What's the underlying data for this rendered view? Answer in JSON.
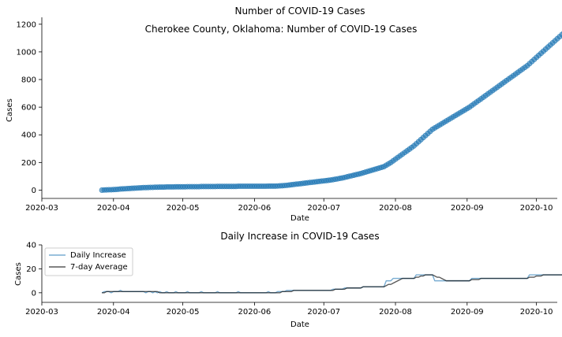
{
  "chart_data": [
    {
      "type": "scatter",
      "title": "Number of COVID-19 Cases",
      "annotation": "Cherokee County, Oklahoma: Number of COVID-19 Cases",
      "xlabel": "Date",
      "ylabel": "Cases",
      "x_type": "date",
      "xlim": [
        "2020-03-01",
        "2020-10-10"
      ],
      "ylim": [
        -60,
        1250
      ],
      "x_ticks": [
        "2020-03-01",
        "2020-04-01",
        "2020-05-01",
        "2020-06-01",
        "2020-07-01",
        "2020-08-01",
        "2020-09-01",
        "2020-10-01"
      ],
      "x_tick_labels": [
        "2020-03",
        "2020-04",
        "2020-05",
        "2020-06",
        "2020-07",
        "2020-08",
        "2020-09",
        "2020-10"
      ],
      "y_ticks": [
        0,
        200,
        400,
        600,
        800,
        1000,
        1200
      ],
      "y_tick_labels": [
        "0",
        "200",
        "400",
        "600",
        "800",
        "1000",
        "1200"
      ],
      "grid": false,
      "marker_color": "#1f77b4",
      "start_date": "2020-03-27",
      "values": [
        0,
        1,
        2,
        3,
        3,
        4,
        5,
        6,
        8,
        9,
        10,
        11,
        12,
        13,
        14,
        15,
        16,
        17,
        18,
        18,
        19,
        20,
        20,
        21,
        21,
        22,
        22,
        22,
        23,
        23,
        23,
        23,
        24,
        24,
        24,
        24,
        24,
        25,
        25,
        25,
        25,
        25,
        25,
        26,
        26,
        26,
        26,
        26,
        26,
        26,
        27,
        27,
        27,
        27,
        27,
        27,
        27,
        27,
        27,
        28,
        28,
        28,
        28,
        28,
        28,
        28,
        28,
        28,
        28,
        28,
        28,
        28,
        29,
        29,
        29,
        29,
        30,
        31,
        32,
        33,
        35,
        37,
        39,
        41,
        43,
        45,
        47,
        49,
        51,
        53,
        55,
        57,
        59,
        61,
        63,
        65,
        67,
        69,
        71,
        73,
        76,
        79,
        82,
        85,
        88,
        92,
        96,
        100,
        104,
        108,
        112,
        116,
        120,
        125,
        130,
        135,
        140,
        145,
        150,
        155,
        160,
        165,
        170,
        180,
        190,
        200,
        212,
        224,
        236,
        248,
        260,
        272,
        284,
        296,
        308,
        320,
        335,
        350,
        365,
        380,
        395,
        410,
        425,
        440,
        450,
        460,
        470,
        480,
        490,
        500,
        510,
        520,
        530,
        540,
        550,
        560,
        570,
        580,
        590,
        600,
        612,
        624,
        636,
        648,
        660,
        672,
        684,
        696,
        708,
        720,
        732,
        744,
        756,
        768,
        780,
        792,
        804,
        816,
        828,
        840,
        852,
        864,
        876,
        888,
        900,
        915,
        930,
        945,
        960,
        975,
        990,
        1005,
        1020,
        1035,
        1050,
        1065,
        1080,
        1095,
        1110,
        1125,
        1140,
        1160,
        1170,
        1175
      ]
    },
    {
      "type": "line",
      "title": "Daily Increase in COVID-19 Cases",
      "xlabel": "Date",
      "ylabel": "Cases",
      "x_type": "date",
      "xlim": [
        "2020-03-01",
        "2020-10-10"
      ],
      "ylim": [
        -8,
        40
      ],
      "x_ticks": [
        "2020-03-01",
        "2020-04-01",
        "2020-05-01",
        "2020-06-01",
        "2020-07-01",
        "2020-08-01",
        "2020-09-01",
        "2020-10-01"
      ],
      "x_tick_labels": [
        "2020-03",
        "2020-04",
        "2020-05",
        "2020-06",
        "2020-07",
        "2020-08",
        "2020-09",
        "2020-10"
      ],
      "y_ticks": [
        0,
        20,
        40
      ],
      "y_tick_labels": [
        "0",
        "20",
        "40"
      ],
      "grid": false,
      "legend_position": "top-left",
      "start_date": "2020-03-27",
      "series": [
        {
          "name": "Daily Increase",
          "color": "#1f77b4",
          "opacity": 0.6,
          "values": [
            0,
            1,
            1,
            1,
            0,
            1,
            1,
            1,
            2,
            1,
            1,
            1,
            1,
            1,
            1,
            1,
            1,
            1,
            1,
            0,
            1,
            1,
            0,
            1,
            0,
            1,
            0,
            0,
            1,
            0,
            0,
            0,
            1,
            0,
            0,
            0,
            0,
            1,
            0,
            0,
            0,
            0,
            0,
            1,
            0,
            0,
            0,
            0,
            0,
            0,
            1,
            0,
            0,
            0,
            0,
            0,
            0,
            0,
            0,
            1,
            0,
            0,
            0,
            0,
            0,
            0,
            0,
            0,
            0,
            0,
            0,
            0,
            1,
            0,
            0,
            0,
            1,
            1,
            1,
            1,
            2,
            2,
            2,
            2,
            2,
            2,
            2,
            2,
            2,
            2,
            2,
            2,
            2,
            2,
            2,
            2,
            2,
            2,
            2,
            2,
            3,
            3,
            3,
            3,
            3,
            4,
            4,
            4,
            4,
            4,
            4,
            4,
            4,
            5,
            5,
            5,
            5,
            5,
            5,
            5,
            5,
            5,
            5,
            10,
            10,
            10,
            12,
            12,
            12,
            12,
            12,
            12,
            12,
            12,
            12,
            12,
            15,
            15,
            15,
            15,
            15,
            15,
            15,
            15,
            10,
            10,
            10,
            10,
            10,
            10,
            10,
            10,
            10,
            10,
            10,
            10,
            10,
            10,
            10,
            10,
            12,
            12,
            12,
            12,
            12,
            12,
            12,
            12,
            12,
            12,
            12,
            12,
            12,
            12,
            12,
            12,
            12,
            12,
            12,
            12,
            12,
            12,
            12,
            12,
            12,
            15,
            15,
            15,
            15,
            15,
            15,
            15,
            15,
            15,
            15,
            15,
            15,
            15,
            15,
            15,
            15,
            15,
            20,
            10,
            5
          ]
        },
        {
          "name": "7-day Average",
          "color": "#000000",
          "opacity": 0.65,
          "values": [
            0,
            0,
            1,
            1,
            1,
            1,
            1,
            1,
            1,
            1,
            1,
            1,
            1,
            1,
            1,
            1,
            1,
            1,
            1,
            1,
            1,
            1,
            1,
            1,
            1,
            0,
            0,
            0,
            0,
            0,
            0,
            0,
            0,
            0,
            0,
            0,
            0,
            0,
            0,
            0,
            0,
            0,
            0,
            0,
            0,
            0,
            0,
            0,
            0,
            0,
            0,
            0,
            0,
            0,
            0,
            0,
            0,
            0,
            0,
            0,
            0,
            0,
            0,
            0,
            0,
            0,
            0,
            0,
            0,
            0,
            0,
            0,
            0,
            0,
            0,
            0,
            0,
            0,
            1,
            1,
            1,
            1,
            1,
            2,
            2,
            2,
            2,
            2,
            2,
            2,
            2,
            2,
            2,
            2,
            2,
            2,
            2,
            2,
            2,
            2,
            2,
            3,
            3,
            3,
            3,
            3,
            4,
            4,
            4,
            4,
            4,
            4,
            4,
            5,
            5,
            5,
            5,
            5,
            5,
            5,
            5,
            5,
            5,
            6,
            7,
            7,
            8,
            9,
            10,
            11,
            12,
            12,
            12,
            12,
            12,
            12,
            13,
            13,
            14,
            14,
            15,
            15,
            15,
            15,
            14,
            13,
            13,
            12,
            11,
            10,
            10,
            10,
            10,
            10,
            10,
            10,
            10,
            10,
            10,
            10,
            11,
            11,
            11,
            11,
            12,
            12,
            12,
            12,
            12,
            12,
            12,
            12,
            12,
            12,
            12,
            12,
            12,
            12,
            12,
            12,
            12,
            12,
            12,
            12,
            12,
            13,
            13,
            13,
            14,
            14,
            14,
            15,
            15,
            15,
            15,
            15,
            15,
            15,
            15,
            15,
            15,
            15,
            16,
            15,
            14,
            13
          ]
        }
      ]
    }
  ]
}
